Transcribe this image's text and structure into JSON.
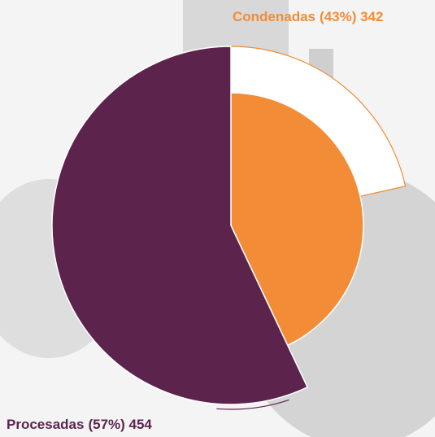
{
  "chart_data": {
    "type": "pie",
    "categories": [
      "Condenadas",
      "Procesadas"
    ],
    "values": [
      342,
      454
    ],
    "value_labels": [
      "(43%) 342",
      "(57%) 454"
    ],
    "colors": [
      "#f28c36",
      "#5c244d"
    ]
  }
}
